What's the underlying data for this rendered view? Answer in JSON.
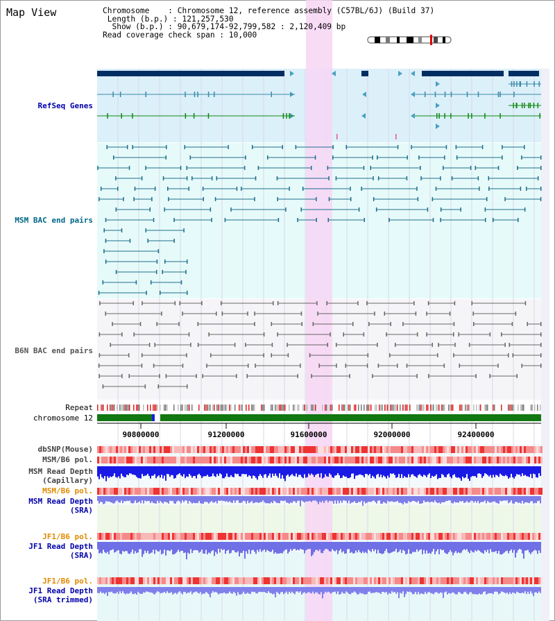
{
  "title": "Map View",
  "info": {
    "line1": "Chromosome    : Chromosome 12, reference assembly (C57BL/6J) (Build 37)",
    "line2": " Length (b.p.) : 121,257,530",
    "line3": "  Show (b.p.) : 90,679,174-92,799,582 : 2,120,409 bp",
    "line4": "Read coverage check span : 10,000"
  },
  "tracks": {
    "refseq": "RefSeq Genes",
    "msm_bac": "MSM BAC end pairs",
    "b6n_bac": "B6N BAC end pairs",
    "repeat": "Repeat",
    "chrom": "chromosome 12",
    "dbsnp": "dbSNP(Mouse)",
    "msm_b6_pol": "MSM/B6 pol.",
    "msm_depth_cap_1": "MSM Read Depth",
    "msm_depth_cap_2": "(Capillary)",
    "msm_b6_pol2": "MSM/B6 pol.",
    "msm_depth_sra_1": "MSM Read Depth",
    "msm_depth_sra_2": "(SRA)",
    "jf1_pol": "JF1/B6 pol.",
    "jf1_depth_sra_1": "JF1 Read Depth",
    "jf1_depth_sra_2": "(SRA)",
    "jf1_pol2": "JF1/B6 pol.",
    "jf1_depth_trim_1": "JF1 Read Depth",
    "jf1_depth_trim_2": "(SRA trimmed)"
  },
  "axis_ticks": [
    "90800000",
    "91200000",
    "91600000",
    "92000000",
    "92400000"
  ],
  "colors": {
    "refseq_bg": "#dcf0fa",
    "msm_bg": "#e6fafa",
    "b6n_bg": "#f5f5f8",
    "highlight": "#f7d6f5",
    "gene_dark": "#002d62",
    "chrom_green": "#117711",
    "depth_blue": "#1a1ae6",
    "depth_light": "#7777ee",
    "pol_red": "#ee4444"
  }
}
